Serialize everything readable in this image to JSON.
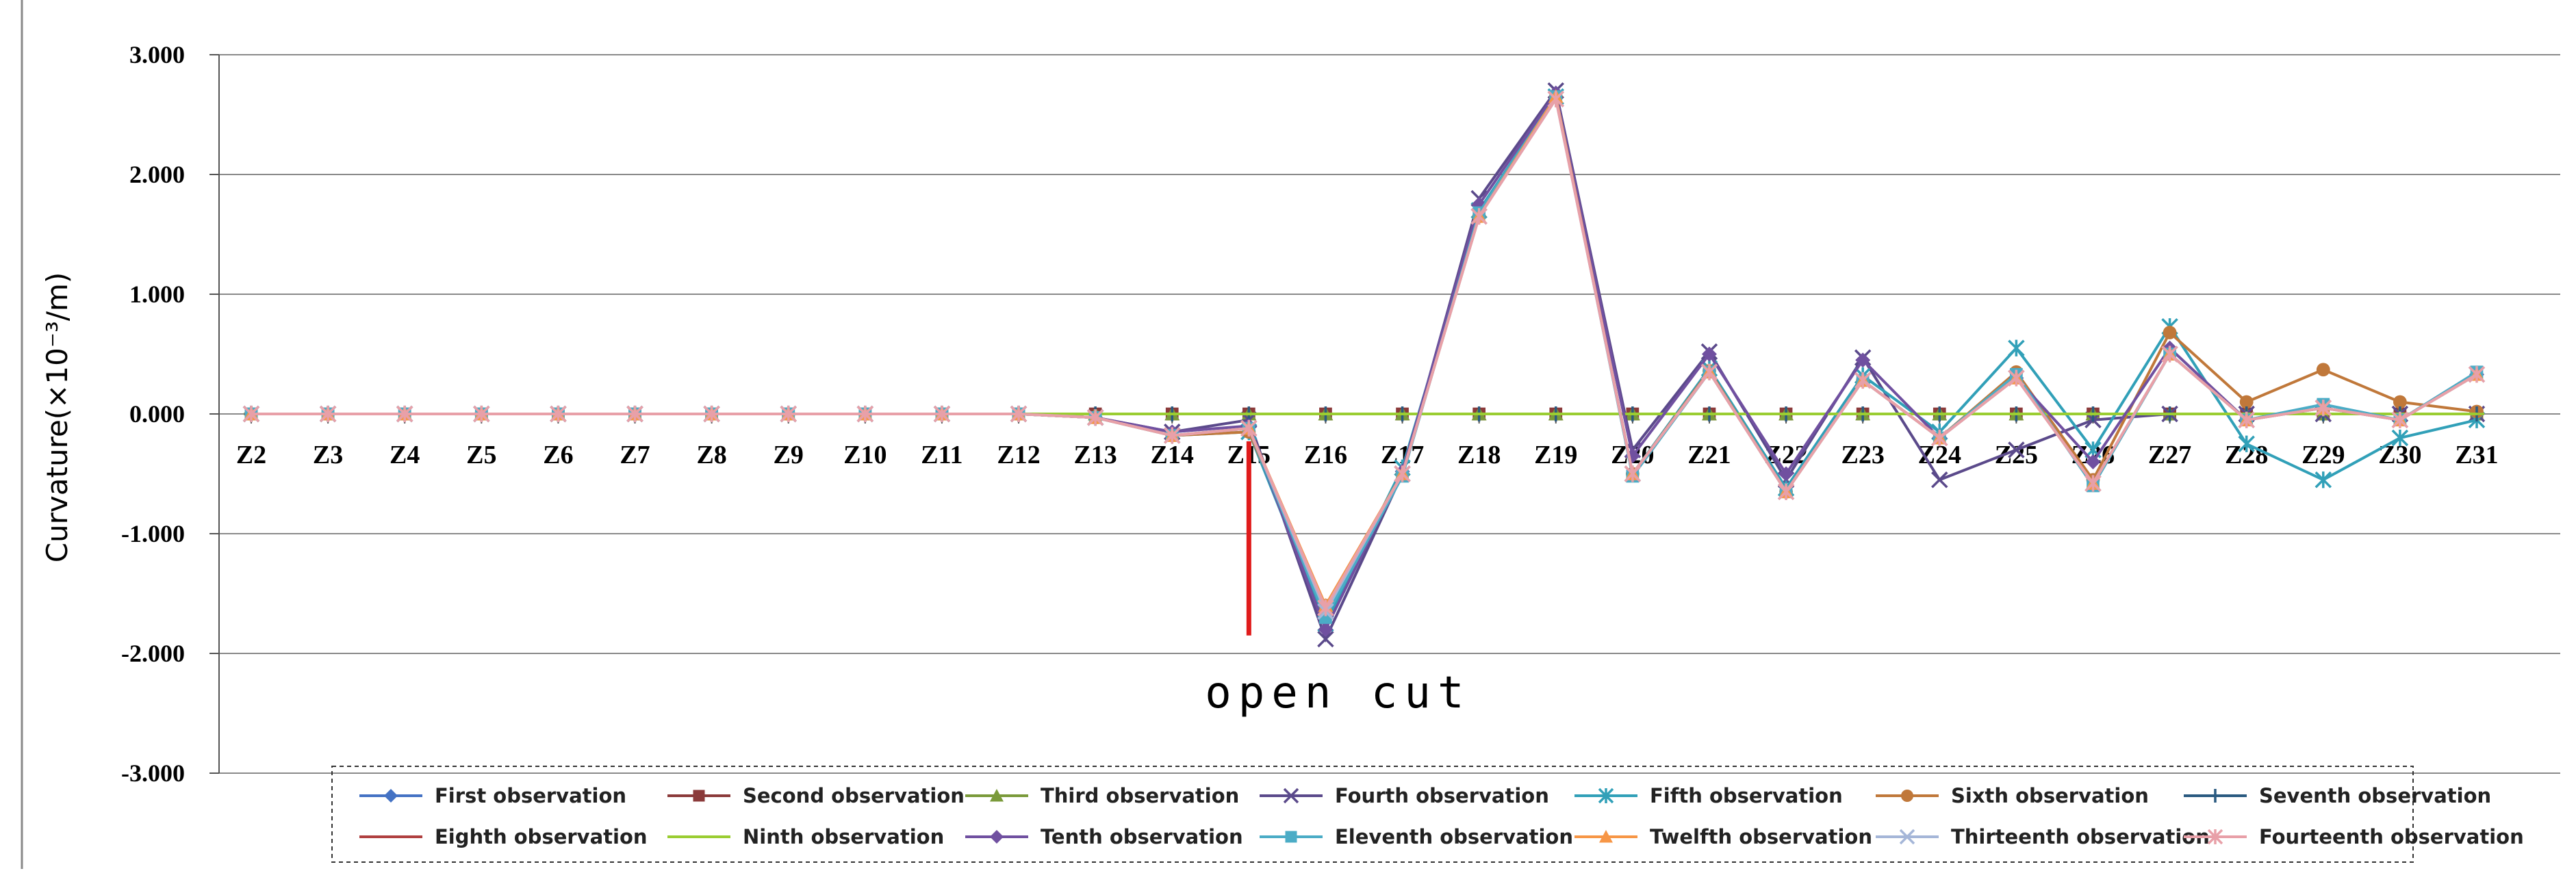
{
  "chart_data": {
    "type": "line",
    "title": "",
    "xlabel": "",
    "ylabel": "Curvature(×10⁻³/m)",
    "ylim": [
      -3.0,
      3.0
    ],
    "yticks": [
      "3.000",
      "2.000",
      "1.000",
      "0.000",
      "-1.000",
      "-2.000",
      "-3.000"
    ],
    "grid": true,
    "legend_position": "bottom",
    "annotation": "open cut",
    "annotation_at": "Z15",
    "categories": [
      "Z2",
      "Z3",
      "Z4",
      "Z5",
      "Z6",
      "Z7",
      "Z8",
      "Z9",
      "Z10",
      "Z11",
      "Z12",
      "Z13",
      "Z14",
      "Z15",
      "Z16",
      "Z17",
      "Z18",
      "Z19",
      "Z20",
      "Z21",
      "Z22",
      "Z23",
      "Z24",
      "Z25",
      "Z26",
      "Z27",
      "Z28",
      "Z29",
      "Z30",
      "Z31"
    ],
    "series": [
      {
        "name": "First observation",
        "color": "#4472c4",
        "marker": "diamond",
        "values": [
          0,
          0,
          0,
          0,
          0,
          0,
          0,
          0,
          0,
          0,
          0,
          0,
          0,
          0,
          0,
          0,
          0,
          0,
          0,
          0,
          0,
          0,
          0,
          0,
          0,
          0,
          0,
          0,
          0,
          0
        ]
      },
      {
        "name": "Second observation",
        "color": "#8b3a3a",
        "marker": "square",
        "values": [
          0,
          0,
          0,
          0,
          0,
          0,
          0,
          0,
          0,
          0,
          0,
          0,
          0,
          0,
          0,
          0,
          0,
          0,
          0,
          0,
          0,
          0,
          0,
          0,
          0,
          0,
          0,
          0,
          0,
          0
        ]
      },
      {
        "name": "Third observation",
        "color": "#7a9a3a",
        "marker": "triangle",
        "values": [
          0,
          0,
          0,
          0,
          0,
          0,
          0,
          0,
          0,
          0,
          0,
          0,
          0,
          0,
          0,
          0,
          0,
          0,
          0,
          0,
          0,
          0,
          0,
          0,
          0,
          0,
          0,
          0,
          0,
          0
        ]
      },
      {
        "name": "Fourth observation",
        "color": "#5b4a8b",
        "marker": "x",
        "values": [
          0,
          0,
          0,
          0,
          0,
          0,
          0,
          0,
          0,
          0,
          0,
          -0.03,
          -0.15,
          -0.05,
          -1.88,
          -0.5,
          1.8,
          2.7,
          -0.3,
          0.52,
          -0.55,
          0.47,
          -0.55,
          -0.3,
          -0.05,
          0,
          0,
          0,
          0,
          0
        ]
      },
      {
        "name": "Fifth observation",
        "color": "#31a0b8",
        "marker": "asterisk",
        "values": [
          0,
          0,
          0,
          0,
          0,
          0,
          0,
          0,
          0,
          0,
          0,
          -0.03,
          -0.18,
          -0.15,
          -1.75,
          -0.45,
          1.7,
          2.65,
          -0.5,
          0.38,
          -0.62,
          0.32,
          -0.15,
          0.55,
          -0.3,
          0.73,
          -0.25,
          -0.55,
          -0.2,
          -0.05
        ]
      },
      {
        "name": "Sixth observation",
        "color": "#c0783a",
        "marker": "circle",
        "values": [
          0,
          0,
          0,
          0,
          0,
          0,
          0,
          0,
          0,
          0,
          0,
          -0.03,
          -0.18,
          -0.15,
          -1.6,
          -0.5,
          1.65,
          2.65,
          -0.5,
          0.36,
          -0.65,
          0.28,
          -0.2,
          0.35,
          -0.55,
          0.68,
          0.1,
          0.37,
          0.1,
          0.02
        ]
      },
      {
        "name": "Seventh observation",
        "color": "#2a5a80",
        "marker": "plus",
        "values": [
          0,
          0,
          0,
          0,
          0,
          0,
          0,
          0,
          0,
          0,
          0,
          0,
          0,
          0,
          0,
          0,
          0,
          0,
          0,
          0,
          0,
          0,
          0,
          0,
          0,
          0,
          0,
          0,
          0,
          0
        ]
      },
      {
        "name": "Eighth observation",
        "color": "#b04040",
        "marker": "dash",
        "values": [
          0,
          0,
          0,
          0,
          0,
          0,
          0,
          0,
          0,
          0,
          0,
          0,
          0,
          0,
          0,
          0,
          0,
          0,
          0,
          0,
          0,
          0,
          0,
          0,
          0,
          0,
          0,
          0,
          0,
          0
        ]
      },
      {
        "name": "Ninth observation",
        "color": "#9acd32",
        "marker": "dash",
        "values": [
          0,
          0,
          0,
          0,
          0,
          0,
          0,
          0,
          0,
          0,
          0,
          0,
          0,
          0,
          0,
          0,
          0,
          0,
          0,
          0,
          0,
          0,
          0,
          0,
          0,
          0,
          0,
          0,
          0,
          0
        ]
      },
      {
        "name": "Tenth observation",
        "color": "#7050a0",
        "marker": "diamond",
        "values": [
          0,
          0,
          0,
          0,
          0,
          0,
          0,
          0,
          0,
          0,
          0,
          -0.03,
          -0.15,
          -0.1,
          -1.8,
          -0.48,
          1.75,
          2.68,
          -0.35,
          0.5,
          -0.5,
          0.45,
          -0.2,
          0.3,
          -0.4,
          0.55,
          -0.05,
          0.05,
          -0.05,
          0.33
        ]
      },
      {
        "name": "Eleventh observation",
        "color": "#4bacc6",
        "marker": "square",
        "values": [
          0,
          0,
          0,
          0,
          0,
          0,
          0,
          0,
          0,
          0,
          0,
          -0.03,
          -0.18,
          -0.12,
          -1.7,
          -0.52,
          1.68,
          2.65,
          -0.52,
          0.35,
          -0.65,
          0.28,
          -0.2,
          0.33,
          -0.6,
          0.5,
          -0.05,
          0.08,
          -0.05,
          0.35
        ]
      },
      {
        "name": "Twelfth observation",
        "color": "#f79646",
        "marker": "triangle",
        "values": [
          0,
          0,
          0,
          0,
          0,
          0,
          0,
          0,
          0,
          0,
          0,
          -0.03,
          -0.18,
          -0.12,
          -1.6,
          -0.5,
          1.65,
          2.65,
          -0.5,
          0.35,
          -0.65,
          0.28,
          -0.2,
          0.3,
          -0.58,
          0.5,
          -0.05,
          0.05,
          -0.05,
          0.33
        ]
      },
      {
        "name": "Thirteenth observation",
        "color": "#a5b6d8",
        "marker": "x",
        "values": [
          0,
          0,
          0,
          0,
          0,
          0,
          0,
          0,
          0,
          0,
          0,
          -0.03,
          -0.18,
          -0.12,
          -1.65,
          -0.5,
          1.65,
          2.63,
          -0.5,
          0.35,
          -0.65,
          0.28,
          -0.2,
          0.3,
          -0.58,
          0.5,
          -0.05,
          0.05,
          -0.05,
          0.33
        ]
      },
      {
        "name": "Fourteenth observation",
        "color": "#e8a0a8",
        "marker": "asterisk",
        "values": [
          0,
          0,
          0,
          0,
          0,
          0,
          0,
          0,
          0,
          0,
          0,
          -0.03,
          -0.18,
          -0.12,
          -1.62,
          -0.5,
          1.65,
          2.63,
          -0.5,
          0.35,
          -0.65,
          0.28,
          -0.2,
          0.3,
          -0.58,
          0.5,
          -0.05,
          0.05,
          -0.05,
          0.33
        ]
      }
    ]
  }
}
